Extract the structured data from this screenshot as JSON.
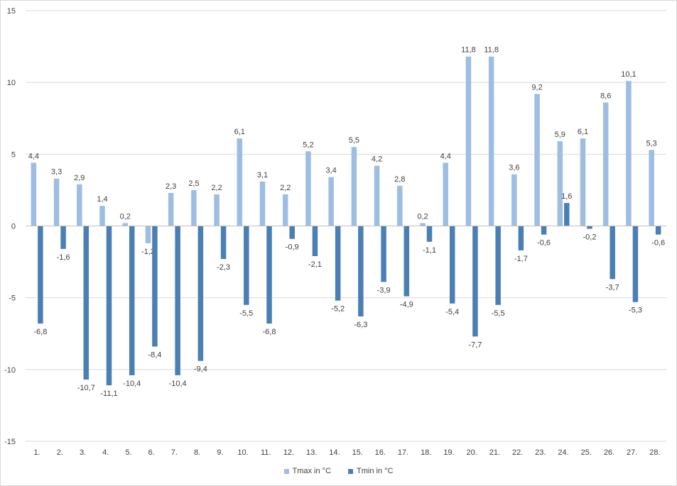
{
  "chart_data": {
    "type": "bar",
    "title": "",
    "xlabel": "",
    "ylabel": "",
    "ylim": [
      -15,
      15
    ],
    "yticks": [
      -15,
      -10,
      -5,
      0,
      5,
      10,
      15
    ],
    "ytick_labels": [
      "-15",
      "-10",
      "-5",
      "0",
      "5",
      "10",
      "15"
    ],
    "grid": true,
    "legend_position": "bottom",
    "categories": [
      "1.",
      "2.",
      "3.",
      "4.",
      "5.",
      "6.",
      "7.",
      "8.",
      "9.",
      "10.",
      "11.",
      "12.",
      "13.",
      "14.",
      "15.",
      "16.",
      "17.",
      "18.",
      "19.",
      "20.",
      "21.",
      "22.",
      "23.",
      "24.",
      "25.",
      "26.",
      "27.",
      "28."
    ],
    "series": [
      {
        "name": "Tmax in °C",
        "color": "#9dbde3",
        "values": [
          4.4,
          3.3,
          2.9,
          1.4,
          0.2,
          -1.2,
          2.3,
          2.5,
          2.2,
          6.1,
          3.1,
          2.2,
          5.2,
          3.4,
          5.5,
          4.2,
          2.8,
          0.2,
          4.4,
          11.8,
          11.8,
          3.6,
          9.2,
          5.9,
          6.1,
          8.6,
          10.1,
          5.3
        ],
        "labels": [
          "4,4",
          "3,3",
          "2,9",
          "1,4",
          "0,2",
          "-1,2",
          "2,3",
          "2,5",
          "2,2",
          "6,1",
          "3,1",
          "2,2",
          "5,2",
          "3,4",
          "5,5",
          "4,2",
          "2,8",
          "0,2",
          "4,4",
          "11,8",
          "11,8",
          "3,6",
          "9,2",
          "5,9",
          "6,1",
          "8,6",
          "10,1",
          "5,3"
        ]
      },
      {
        "name": "Tmin in °C",
        "color": "#4a7fb5",
        "values": [
          -6.8,
          -1.6,
          -10.7,
          -11.1,
          -10.4,
          -8.4,
          -10.4,
          -9.4,
          -2.3,
          -5.5,
          -6.8,
          -0.9,
          -2.1,
          -5.2,
          -6.3,
          -3.9,
          -4.9,
          -1.1,
          -5.4,
          -7.7,
          -5.5,
          -1.7,
          -0.6,
          1.6,
          -0.2,
          -3.7,
          -5.3,
          -0.6
        ],
        "labels": [
          "-6,8",
          "-1,6",
          "-10,7",
          "-11,1",
          "-10,4",
          "-8,4",
          "-10,4",
          "-9,4",
          "-2,3",
          "-5,5",
          "-6,8",
          "-0,9",
          "-2,1",
          "-5,2",
          "-6,3",
          "-3,9",
          "-4,9",
          "-1,1",
          "-5,4",
          "-7,7",
          "-5,5",
          "-1,7",
          "-0,6",
          "1,6",
          "-0,2",
          "-3,7",
          "-5,3",
          "-0,6"
        ]
      }
    ]
  }
}
